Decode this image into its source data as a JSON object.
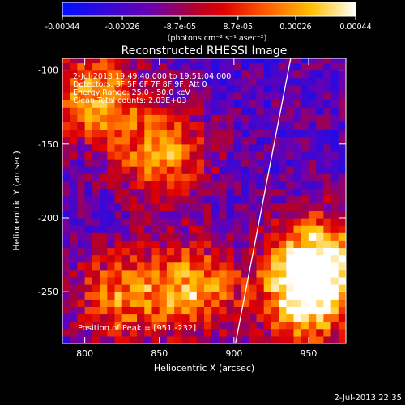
{
  "colorbar": {
    "tick_labels": [
      "-0.00044",
      "-0.00026",
      "-8.7e-05",
      "8.7e-05",
      "0.00026",
      "0.00044"
    ],
    "tick_values": [
      -0.00044,
      -0.00026,
      -8.7e-05,
      8.7e-05,
      0.00026,
      0.00044
    ],
    "range": [
      -0.00044,
      0.00044
    ],
    "unit_label": "(photons cm⁻² s⁻¹ asec⁻²)",
    "colors": [
      "#0000ff",
      "#8000a0",
      "#d00000",
      "#ff5000",
      "#ffc000",
      "#ffffff"
    ]
  },
  "chart_data": {
    "type": "heatmap",
    "title": "Reconstructed RHESSI Image",
    "xlabel": "Heliocentric X (arcsec)",
    "ylabel": "Heliocentric Y (arcsec)",
    "xlim": [
      785,
      975
    ],
    "ylim": [
      -285,
      -92
    ],
    "x_ticks": [
      800,
      850,
      900,
      950
    ],
    "x_tick_labels": [
      "800",
      "850",
      "900",
      "950"
    ],
    "y_ticks": [
      -100,
      -150,
      -200,
      -250
    ],
    "y_tick_labels": [
      "-100",
      "-150",
      "-200",
      "-250"
    ],
    "grid": false,
    "limb_line": {
      "x": [
        901,
        938
      ],
      "y": [
        -285,
        -92
      ]
    },
    "hotspots": [
      {
        "x": 805,
        "y": -120,
        "value": 0.0003
      },
      {
        "x": 850,
        "y": -160,
        "value": 0.00026
      },
      {
        "x": 820,
        "y": -255,
        "value": 0.0002
      },
      {
        "x": 870,
        "y": -250,
        "value": 0.0003
      },
      {
        "x": 955,
        "y": -230,
        "value": 0.00044
      },
      {
        "x": 945,
        "y": -260,
        "value": 0.00035
      }
    ],
    "annotations": [
      "2-Jul-2013 19:49:40.000 to 19:51:04.000",
      "Detectors: 3F 5F 6F 7F 8F 9F, Att 0",
      "Energy Range: 25.0 - 50.0 keV",
      "Clean     Total counts: 2.03E+03"
    ],
    "peak_label": "Position of Peak = [951,-232]"
  },
  "footer_date": "2-Jul-2013 22:35"
}
